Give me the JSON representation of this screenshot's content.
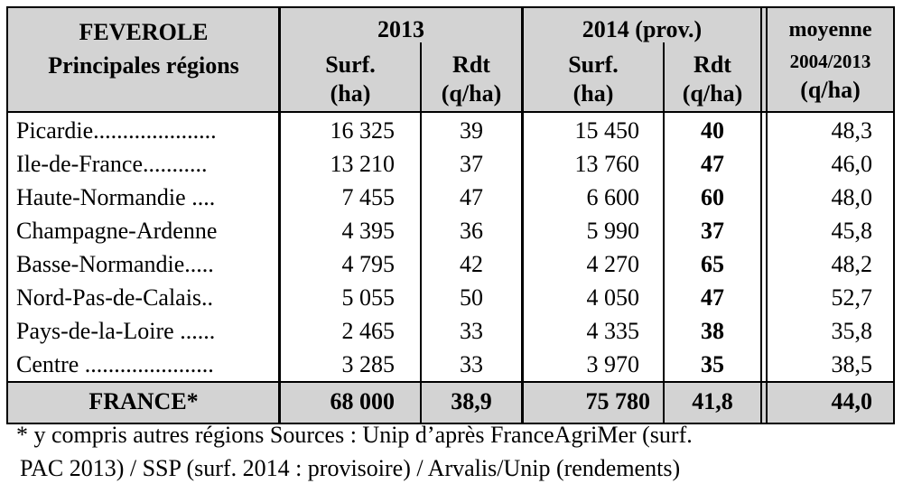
{
  "header": {
    "title_line1": "FEVEROLE",
    "title_line2": "Principales régions",
    "year_2013": "2013",
    "year_2014": "2014 (prov.)",
    "avg_title": "moyenne",
    "avg_period": "2004/2013",
    "avg_unit": "(q/ha)",
    "surf_label": "Surf.",
    "surf_unit": "(ha)",
    "rdt_label": "Rdt",
    "rdt_unit": "(q/ha)"
  },
  "rows": [
    {
      "region": "Picardie.....................",
      "surf2013": "16 325",
      "rdt2013": "39",
      "surf2014": "15 450",
      "rdt2014": "40",
      "avg": "48,3"
    },
    {
      "region": "Ile-de-France...........",
      "surf2013": "13 210",
      "rdt2013": "37",
      "surf2014": "13 760",
      "rdt2014": "47",
      "avg": "46,0"
    },
    {
      "region": "Haute-Normandie ....",
      "surf2013": "7 455",
      "rdt2013": "47",
      "surf2014": "6 600",
      "rdt2014": "60",
      "avg": "48,0"
    },
    {
      "region": "Champagne-Ardenne",
      "surf2013": "4 395",
      "rdt2013": "36",
      "surf2014": "5 990",
      "rdt2014": "37",
      "avg": "45,8"
    },
    {
      "region": "Basse-Normandie.....",
      "surf2013": "4 795",
      "rdt2013": "42",
      "surf2014": "4 270",
      "rdt2014": "65",
      "avg": "48,2"
    },
    {
      "region": "Nord-Pas-de-Calais..",
      "surf2013": "5 055",
      "rdt2013": "50",
      "surf2014": "4 050",
      "rdt2014": "47",
      "avg": "52,7"
    },
    {
      "region": "Pays-de-la-Loire ......",
      "surf2013": "2 465",
      "rdt2013": "33",
      "surf2014": "4 335",
      "rdt2014": "38",
      "avg": "35,8"
    },
    {
      "region": "Centre ......................",
      "surf2013": "3 285",
      "rdt2013": "33",
      "surf2014": "3 970",
      "rdt2014": "35",
      "avg": "38,5"
    }
  ],
  "total": {
    "region": "FRANCE*",
    "surf2013": "68 000",
    "rdt2013": "38,9",
    "surf2014": "75 780",
    "rdt2014": "41,8",
    "avg": "44,0"
  },
  "footnote": {
    "line1": "* y compris autres régions    Sources : Unip d’après FranceAgriMer (surf.",
    "line2": "PAC 2013) / SSP (surf. 2014 : provisoire) / Arvalis/Unip (rendements)"
  }
}
